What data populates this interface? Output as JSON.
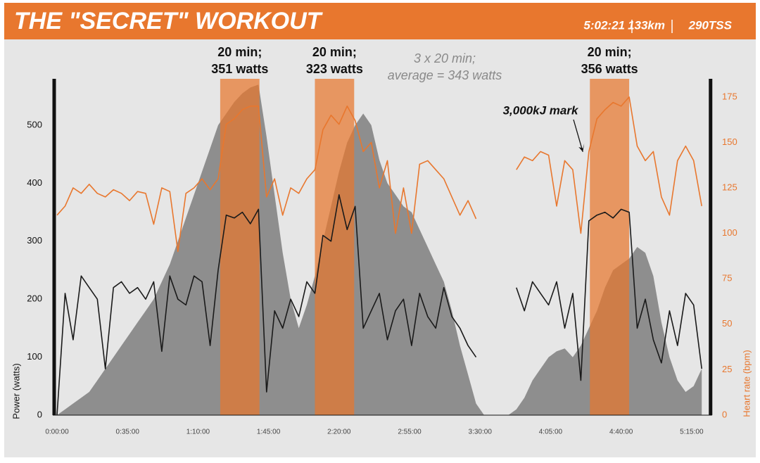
{
  "chart_data": {
    "type": "line",
    "title": "THE \"SECRET\" WORKOUT",
    "stats": [
      "5:02:21",
      "133km",
      "290TSS"
    ],
    "ylabel": "Power (watts)",
    "y2label": "Heart rate (bpm)",
    "x": [
      0,
      4,
      8,
      12,
      16,
      20,
      24,
      28,
      32,
      36,
      40,
      44,
      48,
      52,
      56,
      60,
      64,
      68,
      72,
      76,
      80,
      84,
      88,
      92,
      96,
      100,
      104,
      108,
      112,
      116,
      120,
      124,
      128,
      132,
      136,
      140,
      144,
      148,
      152,
      156,
      160,
      164,
      168,
      172,
      176,
      180,
      184,
      188,
      192,
      196,
      200,
      204,
      208,
      212,
      216,
      220,
      224,
      228,
      232,
      236,
      240,
      244,
      248,
      252,
      256,
      260,
      264,
      268,
      272,
      276,
      280,
      284,
      288,
      292,
      296,
      300,
      304,
      308,
      312,
      316,
      320
    ],
    "series": [
      {
        "kind": "area",
        "color": "#8e8e8e",
        "values": [
          0,
          10,
          20,
          30,
          40,
          60,
          80,
          100,
          120,
          140,
          160,
          180,
          200,
          230,
          260,
          300,
          340,
          380,
          420,
          460,
          500,
          520,
          540,
          555,
          565,
          570,
          480,
          380,
          280,
          200,
          150,
          190,
          240,
          300,
          360,
          420,
          470,
          500,
          520,
          500,
          440,
          400,
          380,
          360,
          350,
          320,
          290,
          260,
          230,
          180,
          120,
          70,
          20,
          0,
          0,
          0,
          0,
          10,
          30,
          60,
          80,
          100,
          110,
          115,
          100,
          120,
          150,
          180,
          220,
          250,
          260,
          270,
          290,
          280,
          240,
          160,
          100,
          60,
          40,
          50,
          80
        ]
      },
      {
        "kind": "line",
        "color": "#1a1a1a",
        "values": [
          0,
          210,
          130,
          240,
          220,
          200,
          80,
          220,
          230,
          210,
          220,
          200,
          230,
          110,
          240,
          200,
          190,
          240,
          230,
          120,
          250,
          345,
          340,
          350,
          330,
          355,
          40,
          180,
          150,
          200,
          170,
          230,
          210,
          310,
          300,
          380,
          320,
          360,
          150,
          180,
          210,
          130,
          180,
          200,
          120,
          210,
          170,
          150,
          220,
          170,
          150,
          120,
          100,
          null,
          null,
          null,
          null,
          220,
          180,
          230,
          210,
          190,
          230,
          150,
          210,
          60,
          335,
          345,
          350,
          340,
          355,
          350,
          150,
          200,
          130,
          90,
          180,
          120,
          210,
          190,
          80
        ]
      },
      {
        "kind": "line",
        "axis": "y2",
        "color": "#e8772e",
        "values": [
          110,
          115,
          125,
          122,
          127,
          122,
          120,
          124,
          122,
          118,
          123,
          122,
          105,
          125,
          123,
          90,
          122,
          125,
          130,
          124,
          130,
          160,
          163,
          168,
          170,
          170,
          120,
          130,
          110,
          125,
          122,
          130,
          135,
          157,
          165,
          160,
          170,
          162,
          145,
          150,
          125,
          140,
          100,
          125,
          100,
          138,
          140,
          135,
          130,
          120,
          110,
          118,
          108,
          null,
          null,
          null,
          null,
          135,
          142,
          140,
          145,
          143,
          115,
          140,
          135,
          100,
          145,
          163,
          168,
          172,
          170,
          175,
          148,
          140,
          145,
          120,
          110,
          140,
          148,
          140,
          115
        ]
      }
    ],
    "highlights": [
      {
        "start": 81,
        "end": 100.5,
        "label": [
          "20 min;",
          "351 watts"
        ]
      },
      {
        "start": 128,
        "end": 147.5,
        "label": [
          "20 min;",
          "323 watts"
        ]
      },
      {
        "start": 264.5,
        "end": 284,
        "label": [
          "20 min;",
          "356 watts"
        ]
      }
    ],
    "summary": [
      "3 x 20 min;",
      "average = 343 watts"
    ],
    "kj_mark": {
      "text": "3,000kJ mark",
      "x": 261,
      "y": 454
    },
    "xlim": [
      0,
      323
    ],
    "xticks": [
      {
        "value": 0,
        "label": "0:00:00"
      },
      {
        "value": 35,
        "label": "0:35:00"
      },
      {
        "value": 70,
        "label": "1:10:00"
      },
      {
        "value": 105,
        "label": "1:45:00"
      },
      {
        "value": 140,
        "label": "2:20:00"
      },
      {
        "value": 175,
        "label": "2:55:00"
      },
      {
        "value": 210,
        "label": "3:30:00"
      },
      {
        "value": 245,
        "label": "4:05:00"
      },
      {
        "value": 280,
        "label": "4:40:00"
      },
      {
        "value": 315,
        "label": "5:15:00"
      }
    ],
    "ylim": [
      0,
      580
    ],
    "yticks": [
      0,
      100,
      200,
      300,
      400,
      500
    ],
    "y2lim": [
      0,
      185
    ],
    "y2ticks": [
      0,
      25,
      50,
      75,
      100,
      125,
      150,
      175
    ],
    "highlight_color": "#e8772e"
  }
}
